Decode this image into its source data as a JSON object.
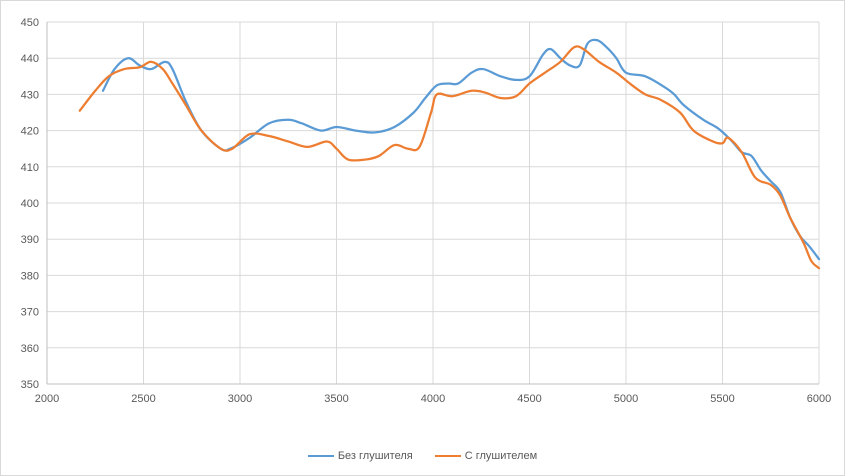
{
  "chart_data": {
    "type": "line",
    "title": "",
    "xlabel": "",
    "ylabel": "",
    "xlim": [
      2000,
      6000
    ],
    "ylim": [
      350,
      450
    ],
    "x_ticks": [
      2000,
      2500,
      3000,
      3500,
      4000,
      4500,
      5000,
      5500,
      6000
    ],
    "y_ticks": [
      350,
      360,
      370,
      380,
      390,
      400,
      410,
      420,
      430,
      440,
      450
    ],
    "grid": true,
    "legend_position": "bottom",
    "series": [
      {
        "name": "Без глушителя",
        "color": "#5b9bd5",
        "points": [
          [
            2290,
            431
          ],
          [
            2350,
            437
          ],
          [
            2420,
            440
          ],
          [
            2480,
            438
          ],
          [
            2540,
            437
          ],
          [
            2610,
            439
          ],
          [
            2650,
            437
          ],
          [
            2720,
            428
          ],
          [
            2800,
            420
          ],
          [
            2900,
            415
          ],
          [
            2950,
            415
          ],
          [
            3050,
            418
          ],
          [
            3150,
            422
          ],
          [
            3250,
            423
          ],
          [
            3320,
            422
          ],
          [
            3420,
            420
          ],
          [
            3500,
            421
          ],
          [
            3600,
            420
          ],
          [
            3700,
            419.5
          ],
          [
            3800,
            421
          ],
          [
            3900,
            425
          ],
          [
            3960,
            429
          ],
          [
            4020,
            432.5
          ],
          [
            4080,
            433
          ],
          [
            4130,
            433
          ],
          [
            4200,
            436
          ],
          [
            4260,
            437
          ],
          [
            4350,
            435
          ],
          [
            4430,
            434
          ],
          [
            4500,
            435
          ],
          [
            4570,
            441
          ],
          [
            4610,
            442.5
          ],
          [
            4660,
            440
          ],
          [
            4710,
            438
          ],
          [
            4760,
            438
          ],
          [
            4800,
            444
          ],
          [
            4850,
            445
          ],
          [
            4900,
            443
          ],
          [
            4950,
            440
          ],
          [
            5000,
            436
          ],
          [
            5100,
            435
          ],
          [
            5200,
            432
          ],
          [
            5250,
            430
          ],
          [
            5300,
            427
          ],
          [
            5400,
            423
          ],
          [
            5480,
            420.5
          ],
          [
            5550,
            417
          ],
          [
            5600,
            414
          ],
          [
            5650,
            413
          ],
          [
            5700,
            409
          ],
          [
            5750,
            406
          ],
          [
            5800,
            403
          ],
          [
            5850,
            396
          ],
          [
            5900,
            391
          ],
          [
            5950,
            388
          ],
          [
            6000,
            384.5
          ]
        ]
      },
      {
        "name": "С глушителем",
        "color": "#ed7d31",
        "points": [
          [
            2170,
            425.5
          ],
          [
            2250,
            431
          ],
          [
            2320,
            435
          ],
          [
            2400,
            437
          ],
          [
            2480,
            437.5
          ],
          [
            2540,
            439
          ],
          [
            2600,
            437
          ],
          [
            2650,
            433
          ],
          [
            2720,
            427
          ],
          [
            2800,
            420
          ],
          [
            2900,
            415
          ],
          [
            2960,
            415
          ],
          [
            3050,
            419
          ],
          [
            3150,
            418.5
          ],
          [
            3250,
            417
          ],
          [
            3350,
            415.5
          ],
          [
            3450,
            417
          ],
          [
            3500,
            415
          ],
          [
            3560,
            412
          ],
          [
            3650,
            412
          ],
          [
            3720,
            413
          ],
          [
            3800,
            416
          ],
          [
            3870,
            415
          ],
          [
            3930,
            415.5
          ],
          [
            3990,
            425
          ],
          [
            4020,
            430
          ],
          [
            4100,
            429.5
          ],
          [
            4200,
            431
          ],
          [
            4270,
            430.5
          ],
          [
            4350,
            429
          ],
          [
            4430,
            429.5
          ],
          [
            4500,
            433
          ],
          [
            4580,
            436
          ],
          [
            4660,
            439
          ],
          [
            4730,
            443
          ],
          [
            4780,
            442.5
          ],
          [
            4860,
            439
          ],
          [
            4950,
            436
          ],
          [
            5020,
            433
          ],
          [
            5100,
            430
          ],
          [
            5180,
            428.5
          ],
          [
            5280,
            425
          ],
          [
            5350,
            420
          ],
          [
            5450,
            417
          ],
          [
            5500,
            416.5
          ],
          [
            5530,
            418
          ],
          [
            5600,
            414
          ],
          [
            5670,
            407
          ],
          [
            5750,
            405
          ],
          [
            5800,
            402
          ],
          [
            5850,
            396
          ],
          [
            5920,
            389
          ],
          [
            5960,
            384
          ],
          [
            6000,
            382
          ]
        ]
      }
    ]
  }
}
